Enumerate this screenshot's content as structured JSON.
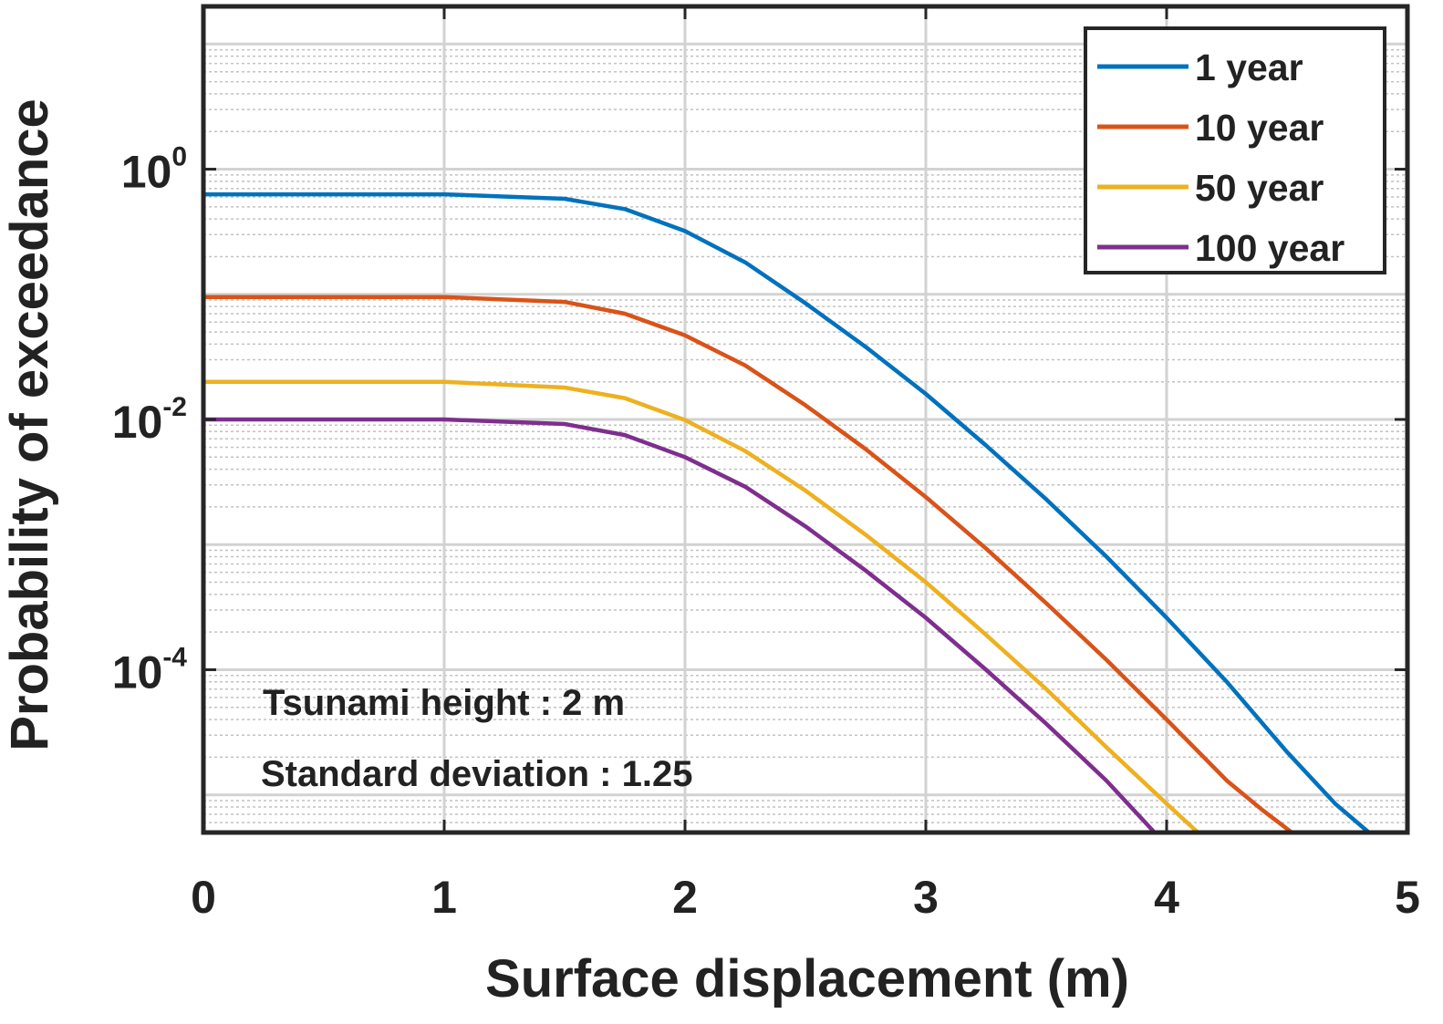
{
  "chart_data": {
    "type": "line",
    "xlabel": "Surface displacement (m)",
    "ylabel": "Probability of exceedance",
    "x_scale": "linear",
    "y_scale": "log",
    "xlim": [
      0,
      5
    ],
    "ylim": [
      5e-06,
      20
    ],
    "grid": true,
    "legend_position": "top-right",
    "x_ticks": [
      {
        "value": 0,
        "label": "0"
      },
      {
        "value": 1,
        "label": "1"
      },
      {
        "value": 2,
        "label": "2"
      },
      {
        "value": 3,
        "label": "3"
      },
      {
        "value": 4,
        "label": "4"
      },
      {
        "value": 5,
        "label": "5"
      }
    ],
    "y_ticks": [
      {
        "value": 1,
        "base": "10",
        "exponent": "0"
      },
      {
        "value": 0.01,
        "base": "10",
        "exponent": "-2"
      },
      {
        "value": 0.0001,
        "base": "10",
        "exponent": "-4"
      }
    ],
    "series": [
      {
        "name": "1 year",
        "color": "#0072BD",
        "x": [
          0,
          1.0,
          1.5,
          1.75,
          2.0,
          2.25,
          2.5,
          2.75,
          3.0,
          3.25,
          3.5,
          3.75,
          4.0,
          4.25,
          4.5,
          4.7,
          4.84
        ],
        "y": [
          0.63,
          0.63,
          0.58,
          0.48,
          0.32,
          0.18,
          0.085,
          0.038,
          0.016,
          0.0062,
          0.0023,
          0.0008,
          0.00026,
          8e-05,
          2.2e-05,
          8.5e-06,
          5e-06
        ]
      },
      {
        "name": "10 year",
        "color": "#D95319",
        "x": [
          0,
          1.0,
          1.5,
          1.75,
          2.0,
          2.25,
          2.5,
          2.75,
          3.0,
          3.25,
          3.5,
          3.75,
          4.0,
          4.25,
          4.4,
          4.52
        ],
        "y": [
          0.095,
          0.095,
          0.087,
          0.07,
          0.047,
          0.027,
          0.013,
          0.0058,
          0.0024,
          0.00093,
          0.00034,
          0.00012,
          4e-05,
          1.3e-05,
          7.5e-06,
          5e-06
        ]
      },
      {
        "name": "50 year",
        "color": "#EDB120",
        "x": [
          0,
          1.0,
          1.5,
          1.75,
          2.0,
          2.25,
          2.5,
          2.75,
          3.0,
          3.25,
          3.5,
          3.75,
          4.0,
          4.13
        ],
        "y": [
          0.02,
          0.02,
          0.018,
          0.0148,
          0.0099,
          0.0056,
          0.0027,
          0.0012,
          0.0005,
          0.00019,
          7e-05,
          2.4e-05,
          8.5e-06,
          5e-06
        ]
      },
      {
        "name": "100 year",
        "color": "#7E2F8E",
        "x": [
          0,
          1.0,
          1.5,
          1.75,
          2.0,
          2.25,
          2.5,
          2.75,
          3.0,
          3.25,
          3.5,
          3.75,
          3.95
        ],
        "y": [
          0.01,
          0.01,
          0.0092,
          0.0075,
          0.005,
          0.0029,
          0.0014,
          0.00062,
          0.00026,
          0.0001,
          3.7e-05,
          1.3e-05,
          5e-06
        ]
      }
    ],
    "annotations": [
      "Tsunami height : 2 m",
      "Standard deviation : 1.25"
    ]
  }
}
